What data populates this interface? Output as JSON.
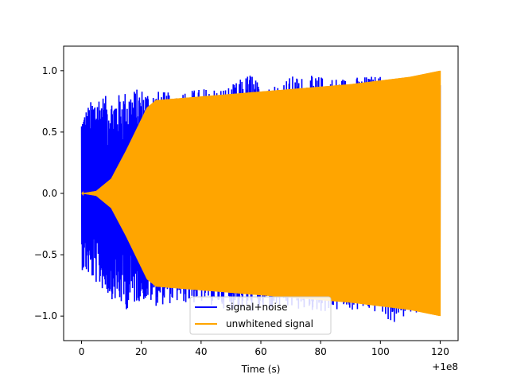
{
  "chart_data": {
    "type": "line",
    "xlabel": "Time (s)",
    "ylabel": "",
    "title": "",
    "xlim": [
      -6,
      126
    ],
    "ylim": [
      -1.2,
      1.2
    ],
    "x_offset_label": "+1e8",
    "xticks": [
      0,
      20,
      40,
      60,
      80,
      100,
      120
    ],
    "xtick_labels": [
      "0",
      "20",
      "40",
      "60",
      "80",
      "100",
      "120"
    ],
    "yticks": [
      -1.0,
      -0.5,
      0.0,
      0.5,
      1.0
    ],
    "ytick_labels": [
      "−1.0",
      "−0.5",
      "0.0",
      "0.5",
      "1.0"
    ],
    "grid": false,
    "legend": {
      "placement": "bottom-center"
    },
    "series": [
      {
        "name": "signal+noise",
        "color": "#0000ff",
        "envelope_x": [
          0,
          5,
          10,
          15,
          20,
          25,
          30,
          40,
          50,
          57,
          60,
          70,
          80,
          90,
          100,
          105,
          110,
          120
        ],
        "envelope_upper": [
          0.64,
          0.82,
          0.78,
          0.84,
          0.86,
          0.84,
          0.82,
          0.86,
          0.88,
          1.0,
          0.86,
          0.96,
          0.96,
          0.95,
          0.97,
          0.85,
          0.96,
          0.97
        ],
        "envelope_lower": [
          -0.62,
          -0.74,
          -0.86,
          -0.95,
          -0.87,
          -0.92,
          -0.9,
          -0.9,
          -0.95,
          -0.97,
          -0.97,
          -0.95,
          -0.97,
          -0.96,
          -0.98,
          -1.09,
          -0.97,
          -0.98
        ]
      },
      {
        "name": "unwhitened signal",
        "color": "#ffa500",
        "envelope_x": [
          0,
          5,
          10,
          15,
          20,
          22,
          25,
          30,
          40,
          50,
          60,
          70,
          80,
          90,
          100,
          110,
          120
        ],
        "envelope_upper": [
          0.0,
          0.02,
          0.12,
          0.35,
          0.6,
          0.7,
          0.76,
          0.77,
          0.79,
          0.81,
          0.83,
          0.85,
          0.87,
          0.89,
          0.92,
          0.95,
          1.0
        ],
        "envelope_lower": [
          0.0,
          -0.02,
          -0.12,
          -0.35,
          -0.6,
          -0.7,
          -0.76,
          -0.77,
          -0.79,
          -0.81,
          -0.83,
          -0.85,
          -0.87,
          -0.89,
          -0.92,
          -0.95,
          -1.0
        ]
      }
    ]
  }
}
